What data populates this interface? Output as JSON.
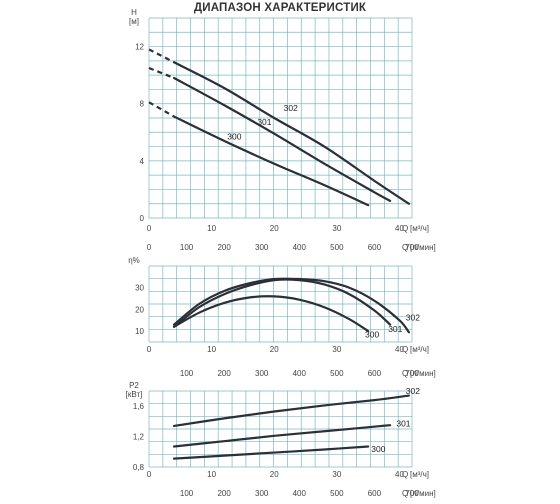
{
  "title": "ДИАПАЗОН ХАРАКТЕРИСТИК",
  "colors": {
    "grid": "#7ab8c4",
    "curve": "#2b2f38",
    "text": "#444444"
  },
  "chart_data": [
    {
      "type": "line",
      "ylabel": "H",
      "yunit": "[м]",
      "xlabel": "Q",
      "xunit": "[м³/ч]",
      "xlabel2": "Q",
      "xunit2": "[л/мин]",
      "xlim": [
        0,
        42
      ],
      "ylim": [
        0,
        14
      ],
      "xticks": [
        0,
        10,
        20,
        30,
        40
      ],
      "yticks": [
        0,
        4,
        8,
        12
      ],
      "xticks2": [
        0,
        100,
        200,
        300,
        400,
        500,
        600,
        700
      ],
      "grid": true,
      "series": [
        {
          "name": "300",
          "label_at": [
            12.5,
            5.5
          ],
          "x": [
            4,
            12,
            20,
            28,
            35
          ],
          "y": [
            7.1,
            5.4,
            3.8,
            2.3,
            0.9
          ]
        },
        {
          "name": "301",
          "label_at": [
            17.3,
            6.5
          ],
          "x": [
            4,
            12,
            20,
            28,
            36,
            38.5
          ],
          "y": [
            9.8,
            7.9,
            5.9,
            3.8,
            1.8,
            1.2
          ]
        },
        {
          "name": "302",
          "label_at": [
            21.5,
            7.5
          ],
          "x": [
            4,
            12,
            20,
            28,
            36,
            41.5
          ],
          "y": [
            10.9,
            9.1,
            7.0,
            5.0,
            2.6,
            1.0
          ]
        }
      ],
      "extensions": [
        {
          "name": "300",
          "x": [
            0,
            4
          ],
          "y": [
            8.1,
            7.1
          ]
        },
        {
          "name": "301",
          "x": [
            0,
            4
          ],
          "y": [
            10.5,
            9.8
          ]
        },
        {
          "name": "302",
          "x": [
            0,
            4
          ],
          "y": [
            11.8,
            10.9
          ]
        }
      ]
    },
    {
      "type": "line",
      "ylabel": "η%",
      "xlabel": "Q",
      "xunit": "[м³/ч]",
      "xlabel2": "Q",
      "xunit2": "[л/мин]",
      "xlim": [
        0,
        42
      ],
      "ylim": [
        5,
        40
      ],
      "xticks": [
        0,
        10,
        20,
        30,
        40
      ],
      "yticks": [
        10,
        20,
        30
      ],
      "xticks2": [
        100,
        200,
        300,
        400,
        500,
        600,
        700
      ],
      "grid": true,
      "series": [
        {
          "name": "300",
          "label_at": [
            34.5,
            7
          ],
          "x": [
            4,
            8,
            12,
            16,
            20,
            24,
            28,
            32,
            35
          ],
          "y": [
            12,
            18.5,
            23,
            25.5,
            26,
            24.5,
            21,
            15.5,
            10
          ]
        },
        {
          "name": "301",
          "label_at": [
            38.2,
            9.5
          ],
          "x": [
            4,
            8,
            12,
            16,
            20,
            24,
            28,
            32,
            36,
            38.5
          ],
          "y": [
            12,
            21,
            27,
            31,
            33.5,
            33.5,
            31.5,
            27,
            19.5,
            13
          ]
        },
        {
          "name": "302",
          "label_at": [
            41,
            15
          ],
          "x": [
            4,
            8,
            12,
            16,
            20,
            24,
            28,
            32,
            36,
            40,
            41.5
          ],
          "y": [
            13,
            22.5,
            28.5,
            32,
            34,
            34,
            33,
            30,
            24,
            15,
            9.5
          ]
        }
      ]
    },
    {
      "type": "line",
      "ylabel": "P2",
      "yunit": "[кВт]",
      "xlabel": "Q",
      "xunit": "[м³/ч]",
      "xlabel2": "Q",
      "xunit2": "[л/мин]",
      "xlim": [
        0,
        42
      ],
      "ylim": [
        0.8,
        1.8
      ],
      "xticks": [
        0,
        10,
        20,
        30,
        40
      ],
      "yticks": [
        0.8,
        1.2,
        1.6
      ],
      "ytick_labels": [
        "0,8",
        "1,2",
        "1,6"
      ],
      "xticks2": [
        100,
        200,
        300,
        400,
        500,
        600,
        700
      ],
      "grid": true,
      "series": [
        {
          "name": "300",
          "label_at": [
            35.5,
            1.0
          ],
          "x": [
            4,
            12,
            20,
            28,
            35
          ],
          "y": [
            0.91,
            0.95,
            0.99,
            1.03,
            1.07
          ]
        },
        {
          "name": "301",
          "label_at": [
            39.5,
            1.33
          ],
          "x": [
            4,
            12,
            20,
            28,
            38.5
          ],
          "y": [
            1.07,
            1.14,
            1.21,
            1.27,
            1.35
          ]
        },
        {
          "name": "302",
          "label_at": [
            41,
            1.76
          ],
          "x": [
            4,
            12,
            20,
            28,
            36,
            41.5
          ],
          "y": [
            1.34,
            1.44,
            1.53,
            1.61,
            1.68,
            1.74
          ]
        }
      ]
    }
  ]
}
